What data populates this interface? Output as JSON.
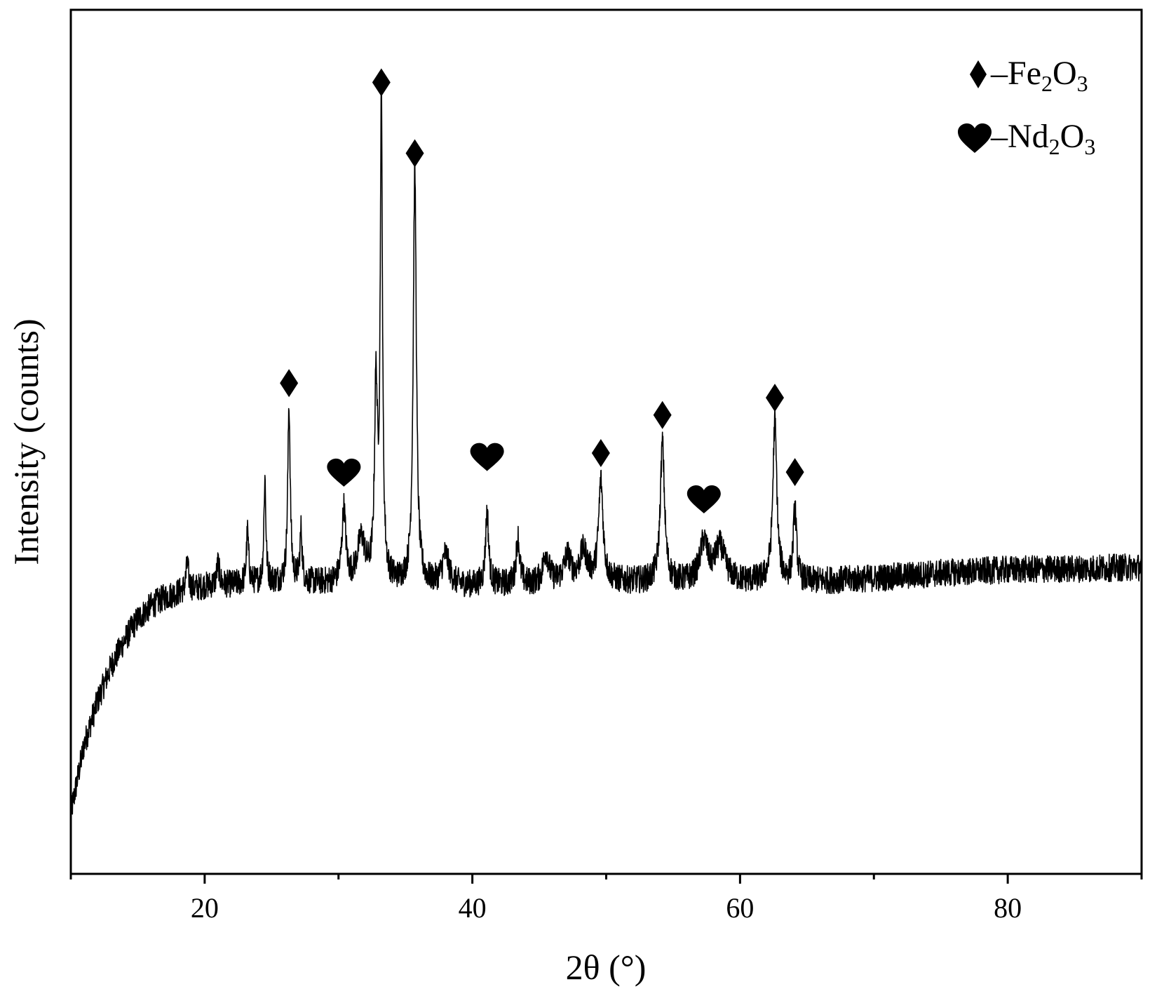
{
  "chart_data": {
    "type": "line",
    "xlabel": "2θ (°)",
    "ylabel": "Intensity (counts)",
    "xlim": [
      10,
      90
    ],
    "ylim": [
      0,
      100
    ],
    "x_ticks_major": [
      20,
      40,
      60,
      80
    ],
    "x_ticks_minor": [
      10,
      30,
      50,
      70,
      90
    ],
    "y_ticks": [],
    "grid": false,
    "legend_position": "top-right",
    "legend": [
      {
        "symbol": "diamond",
        "label_parts": [
          "–Fe",
          "2",
          "O",
          "3"
        ]
      },
      {
        "symbol": "heart",
        "label_parts": [
          "–Nd",
          "2",
          "O",
          "3"
        ]
      }
    ],
    "series": [
      {
        "color": "#000000",
        "baseline": [
          [
            10,
            7
          ],
          [
            11,
            15
          ],
          [
            12,
            20
          ],
          [
            13,
            24
          ],
          [
            14,
            27
          ],
          [
            15,
            29.5
          ],
          [
            16,
            31
          ],
          [
            17,
            32
          ],
          [
            18,
            32.5
          ],
          [
            20,
            33.3
          ],
          [
            25,
            33.7
          ],
          [
            30,
            33.6
          ],
          [
            35,
            33.5
          ],
          [
            40,
            33.3
          ],
          [
            45,
            33.5
          ],
          [
            50,
            33.8
          ],
          [
            55,
            33.7
          ],
          [
            60,
            33.8
          ],
          [
            65,
            33.8
          ],
          [
            70,
            34.2
          ],
          [
            75,
            34.8
          ],
          [
            80,
            35.2
          ],
          [
            85,
            35.3
          ],
          [
            90,
            35.5
          ]
        ],
        "peaks": [
          {
            "x": 18.7,
            "height": 3,
            "width": 0.12
          },
          {
            "x": 21.0,
            "height": 2.5,
            "width": 0.12
          },
          {
            "x": 23.2,
            "height": 6,
            "width": 0.1
          },
          {
            "x": 24.5,
            "height": 12,
            "width": 0.09
          },
          {
            "x": 26.3,
            "height": 20.5,
            "width": 0.11
          },
          {
            "x": 27.2,
            "height": 6,
            "width": 0.1
          },
          {
            "x": 30.4,
            "height": 8.5,
            "width": 0.17
          },
          {
            "x": 31.7,
            "height": 5,
            "width": 0.35
          },
          {
            "x": 32.8,
            "height": 22,
            "width": 0.13
          },
          {
            "x": 33.2,
            "height": 55,
            "width": 0.1
          },
          {
            "x": 35.7,
            "height": 48,
            "width": 0.14
          },
          {
            "x": 38.0,
            "height": 3.5,
            "width": 0.3
          },
          {
            "x": 41.1,
            "height": 8.5,
            "width": 0.14
          },
          {
            "x": 43.4,
            "height": 5.5,
            "width": 0.15
          },
          {
            "x": 45.5,
            "height": 3.5,
            "width": 0.25
          },
          {
            "x": 47.1,
            "height": 3,
            "width": 0.3
          },
          {
            "x": 48.3,
            "height": 3.5,
            "width": 0.35
          },
          {
            "x": 49.6,
            "height": 11.5,
            "width": 0.2
          },
          {
            "x": 54.2,
            "height": 16,
            "width": 0.19
          },
          {
            "x": 57.3,
            "height": 4.5,
            "width": 0.35
          },
          {
            "x": 58.5,
            "height": 4,
            "width": 0.45
          },
          {
            "x": 62.6,
            "height": 18.5,
            "width": 0.18
          },
          {
            "x": 64.1,
            "height": 8.5,
            "width": 0.14
          }
        ],
        "noise_amplitude": 1.6,
        "sample_step": 0.02
      }
    ],
    "markers": [
      {
        "symbol": "diamond",
        "x": 26.3,
        "y": 56.8
      },
      {
        "symbol": "heart",
        "x": 30.4,
        "y": 46.2
      },
      {
        "symbol": "diamond",
        "x": 33.2,
        "y": 91.6
      },
      {
        "symbol": "diamond",
        "x": 35.7,
        "y": 83.4
      },
      {
        "symbol": "heart",
        "x": 41.1,
        "y": 48.0
      },
      {
        "symbol": "diamond",
        "x": 49.6,
        "y": 48.7
      },
      {
        "symbol": "diamond",
        "x": 54.2,
        "y": 53.1
      },
      {
        "symbol": "heart",
        "x": 57.3,
        "y": 43.1
      },
      {
        "symbol": "diamond",
        "x": 62.6,
        "y": 55.1
      },
      {
        "symbol": "diamond",
        "x": 64.1,
        "y": 46.5
      }
    ]
  }
}
